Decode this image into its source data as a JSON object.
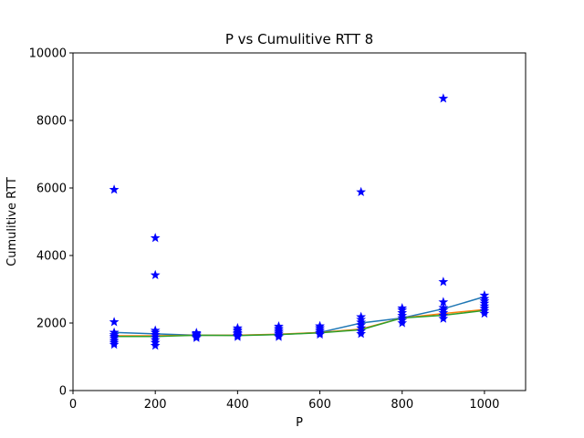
{
  "chart_data": {
    "type": "scatter",
    "title": "P vs Cumulitive RTT 8",
    "xlabel": "P",
    "ylabel": "Cumulitive RTT",
    "xlim": [
      0,
      1100
    ],
    "ylim": [
      0,
      10000
    ],
    "xticks": [
      "0",
      "200",
      "400",
      "600",
      "800",
      "1000"
    ],
    "yticks": [
      "0",
      "2000",
      "4000",
      "6000",
      "8000",
      "10000"
    ],
    "grid": false,
    "legend": "none",
    "scatter": {
      "marker": "star",
      "color": "#0000ff",
      "points": [
        [
          100,
          5950
        ],
        [
          100,
          2030
        ],
        [
          100,
          1720
        ],
        [
          100,
          1650
        ],
        [
          100,
          1600
        ],
        [
          100,
          1550
        ],
        [
          100,
          1480
        ],
        [
          100,
          1420
        ],
        [
          100,
          1360
        ],
        [
          200,
          4520
        ],
        [
          200,
          3420
        ],
        [
          200,
          1780
        ],
        [
          200,
          1720
        ],
        [
          200,
          1650
        ],
        [
          200,
          1580
        ],
        [
          200,
          1500
        ],
        [
          200,
          1420
        ],
        [
          200,
          1330
        ],
        [
          300,
          1710
        ],
        [
          300,
          1680
        ],
        [
          300,
          1640
        ],
        [
          300,
          1600
        ],
        [
          300,
          1560
        ],
        [
          400,
          1850
        ],
        [
          400,
          1800
        ],
        [
          400,
          1760
        ],
        [
          400,
          1710
        ],
        [
          400,
          1670
        ],
        [
          400,
          1630
        ],
        [
          400,
          1590
        ],
        [
          500,
          1900
        ],
        [
          500,
          1840
        ],
        [
          500,
          1790
        ],
        [
          500,
          1740
        ],
        [
          500,
          1690
        ],
        [
          500,
          1640
        ],
        [
          500,
          1590
        ],
        [
          600,
          1910
        ],
        [
          600,
          1860
        ],
        [
          600,
          1810
        ],
        [
          600,
          1760
        ],
        [
          600,
          1710
        ],
        [
          600,
          1660
        ],
        [
          700,
          5880
        ],
        [
          700,
          2180
        ],
        [
          700,
          2100
        ],
        [
          700,
          2020
        ],
        [
          700,
          1940
        ],
        [
          700,
          1850
        ],
        [
          700,
          1760
        ],
        [
          700,
          1680
        ],
        [
          800,
          2440
        ],
        [
          800,
          2380
        ],
        [
          800,
          2300
        ],
        [
          800,
          2220
        ],
        [
          800,
          2150
        ],
        [
          800,
          2080
        ],
        [
          800,
          2000
        ],
        [
          900,
          8650
        ],
        [
          900,
          3220
        ],
        [
          900,
          2620
        ],
        [
          900,
          2450
        ],
        [
          900,
          2380
        ],
        [
          900,
          2300
        ],
        [
          900,
          2220
        ],
        [
          900,
          2130
        ],
        [
          1000,
          2820
        ],
        [
          1000,
          2720
        ],
        [
          1000,
          2650
        ],
        [
          1000,
          2580
        ],
        [
          1000,
          2500
        ],
        [
          1000,
          2430
        ],
        [
          1000,
          2360
        ],
        [
          1000,
          2280
        ]
      ]
    },
    "series": [
      {
        "color": "#1f77b4",
        "x": [
          100,
          200,
          300,
          400,
          500,
          600,
          700,
          800,
          900,
          1000
        ],
        "values": [
          1720,
          1680,
          1640,
          1640,
          1660,
          1720,
          2000,
          2150,
          2420,
          2780
        ]
      },
      {
        "color": "#ff7f0e",
        "x": [
          100,
          200,
          300,
          400,
          500,
          600,
          700,
          800,
          900,
          1000
        ],
        "values": [
          1620,
          1620,
          1640,
          1640,
          1670,
          1720,
          1820,
          2150,
          2280,
          2400
        ]
      },
      {
        "color": "#2ca02c",
        "x": [
          100,
          200,
          300,
          400,
          500,
          600,
          700,
          800,
          900,
          1000
        ],
        "values": [
          1600,
          1600,
          1640,
          1630,
          1660,
          1710,
          1800,
          2150,
          2230,
          2370
        ]
      }
    ]
  }
}
